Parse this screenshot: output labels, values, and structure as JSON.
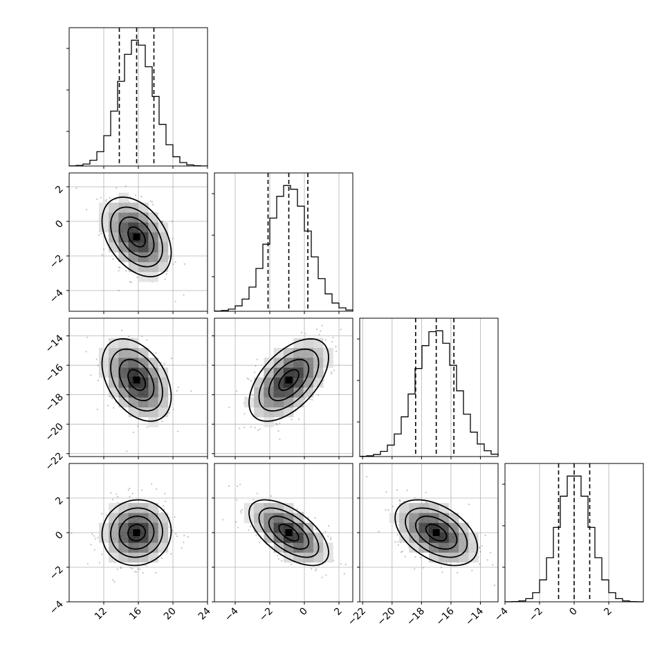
{
  "chart_data": {
    "type": "corner",
    "n_params": 4,
    "grid": true,
    "color": "#000000",
    "scatter_color": "#777777",
    "labels": [
      "",
      "",
      "",
      ""
    ],
    "params": [
      {
        "range": [
          8.0,
          24.0
        ],
        "ticks": [
          12,
          16,
          20,
          24
        ],
        "tick_labels": [
          "12",
          "16",
          "20",
          "24"
        ],
        "mean": 15.8,
        "sigma": 2.0,
        "quantiles": [
          13.8,
          15.8,
          17.8
        ]
      },
      {
        "range": [
          -5.2,
          2.8
        ],
        "ticks": [
          -4,
          -2,
          0,
          2
        ],
        "tick_labels": [
          "−4",
          "−2",
          "0",
          "2"
        ],
        "mean": -0.9,
        "sigma": 1.15,
        "quantiles": [
          -2.1,
          -0.9,
          0.2
        ]
      },
      {
        "range": [
          -22.2,
          -12.8
        ],
        "ticks": [
          -22,
          -20,
          -18,
          -16,
          -14
        ],
        "tick_labels": [
          "−22",
          "−20",
          "−18",
          "−16",
          "−14"
        ],
        "mean": -17.0,
        "sigma": 1.4,
        "quantiles": [
          -18.4,
          -17.0,
          -15.8
        ]
      },
      {
        "range": [
          -4.0,
          4.0
        ],
        "ticks": [
          -4,
          -2,
          0,
          2
        ],
        "tick_labels": [
          "−4",
          "−2",
          "0",
          "2"
        ],
        "mean": 0.0,
        "sigma": 0.95,
        "quantiles": [
          -0.9,
          0.0,
          0.9
        ]
      }
    ],
    "correlations": [
      {
        "pair": [
          0,
          1
        ],
        "rho": -0.4
      },
      {
        "pair": [
          0,
          2
        ],
        "rho": -0.4
      },
      {
        "pair": [
          1,
          2
        ],
        "rho": 0.55
      },
      {
        "pair": [
          0,
          3
        ],
        "rho": 0.05
      },
      {
        "pair": [
          1,
          3
        ],
        "rho": -0.6
      },
      {
        "pair": [
          2,
          3
        ],
        "rho": -0.45
      }
    ],
    "histogram": {
      "bins": 20,
      "normalized": true
    },
    "contour_levels_sigma": [
      0.5,
      1.0,
      1.5,
      2.0
    ],
    "scatter_points_per_panel": 350
  }
}
